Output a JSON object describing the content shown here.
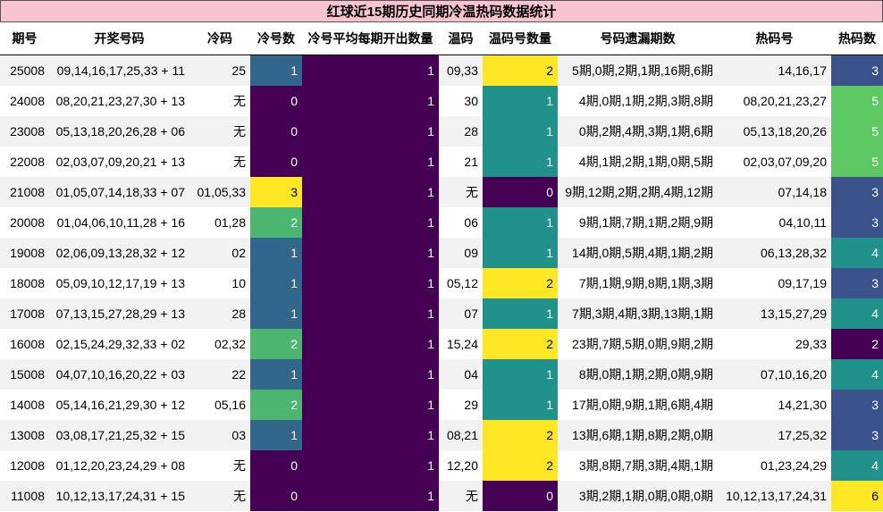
{
  "title": "红球近15期历史同期冷温热码数据统计",
  "columns": [
    "期号",
    "开奖号码",
    "冷码",
    "冷号数",
    "冷号平均每期开出数量",
    "温码",
    "温码号数量",
    "号码遗漏期数",
    "热码号",
    "热码数"
  ],
  "cell_colormap": [
    "#440154",
    "#3b528b",
    "#21918c",
    "#5ec962",
    "#fde725"
  ],
  "rows": [
    [
      25008,
      "09,14,16,17,25,33 + 11",
      25,
      1,
      1,
      "09,33",
      2,
      "5期,0期,2期,1期,16期,6期",
      "14,16,17",
      3
    ],
    [
      24008,
      "08,20,21,23,27,30 + 13",
      "无",
      0,
      1,
      30,
      1,
      "4期,0期,1期,2期,3期,8期",
      "08,20,21,23,27",
      5
    ],
    [
      23008,
      "05,13,18,20,26,28 + 06",
      "无",
      0,
      1,
      28,
      1,
      "0期,2期,4期,3期,1期,6期",
      "05,13,18,20,26",
      5
    ],
    [
      22008,
      "02,03,07,09,20,21 + 13",
      "无",
      0,
      1,
      21,
      1,
      "4期,1期,2期,1期,0期,5期",
      "02,03,07,09,20",
      5
    ],
    [
      21008,
      "01,05,07,14,18,33 + 07",
      "01,05,33",
      3,
      1,
      "无",
      0,
      "9期,12期,2期,2期,4期,12期",
      "07,14,18",
      3
    ],
    [
      20008,
      "01,04,06,10,11,28 + 16",
      "01,28",
      2,
      1,
      "06",
      1,
      "9期,1期,7期,1期,2期,9期",
      "04,10,11",
      3
    ],
    [
      19008,
      "02,06,09,13,28,32 + 12",
      "02",
      1,
      1,
      "09",
      1,
      "14期,0期,5期,4期,1期,2期",
      "06,13,28,32",
      4
    ],
    [
      18008,
      "05,09,10,12,17,19 + 13",
      10,
      1,
      1,
      "05,12",
      2,
      "7期,1期,9期,8期,1期,3期",
      "09,17,19",
      3
    ],
    [
      17008,
      "07,13,15,27,28,29 + 13",
      28,
      1,
      1,
      "07",
      1,
      "7期,3期,4期,3期,13期,1期",
      "13,15,27,29",
      4
    ],
    [
      16008,
      "02,15,24,29,32,33 + 02",
      "02,32",
      2,
      1,
      "15,24",
      2,
      "23期,7期,5期,0期,9期,2期",
      "29,33",
      2
    ],
    [
      15008,
      "04,07,10,16,20,22 + 03",
      22,
      1,
      1,
      "04",
      1,
      "8期,0期,1期,2期,0期,9期",
      "07,10,16,20",
      4
    ],
    [
      14008,
      "05,14,16,21,29,30 + 12",
      "05,16",
      2,
      1,
      29,
      1,
      "17期,0期,9期,1期,6期,4期",
      "14,21,30",
      3
    ],
    [
      13008,
      "03,08,17,21,25,32 + 15",
      "03",
      1,
      1,
      "08,21",
      2,
      "13期,6期,1期,8期,2期,0期",
      "17,25,32",
      3
    ],
    [
      12008,
      "01,12,20,23,24,29 + 08",
      "无",
      0,
      1,
      "12,20",
      2,
      "3期,8期,7期,3期,4期,1期",
      "01,23,24,29",
      4
    ],
    [
      11008,
      "10,12,13,17,24,31 + 15",
      "无",
      0,
      1,
      "无",
      0,
      "3期,2期,1期,0期,0期,0期",
      "10,12,13,17,24,31",
      6
    ]
  ]
}
